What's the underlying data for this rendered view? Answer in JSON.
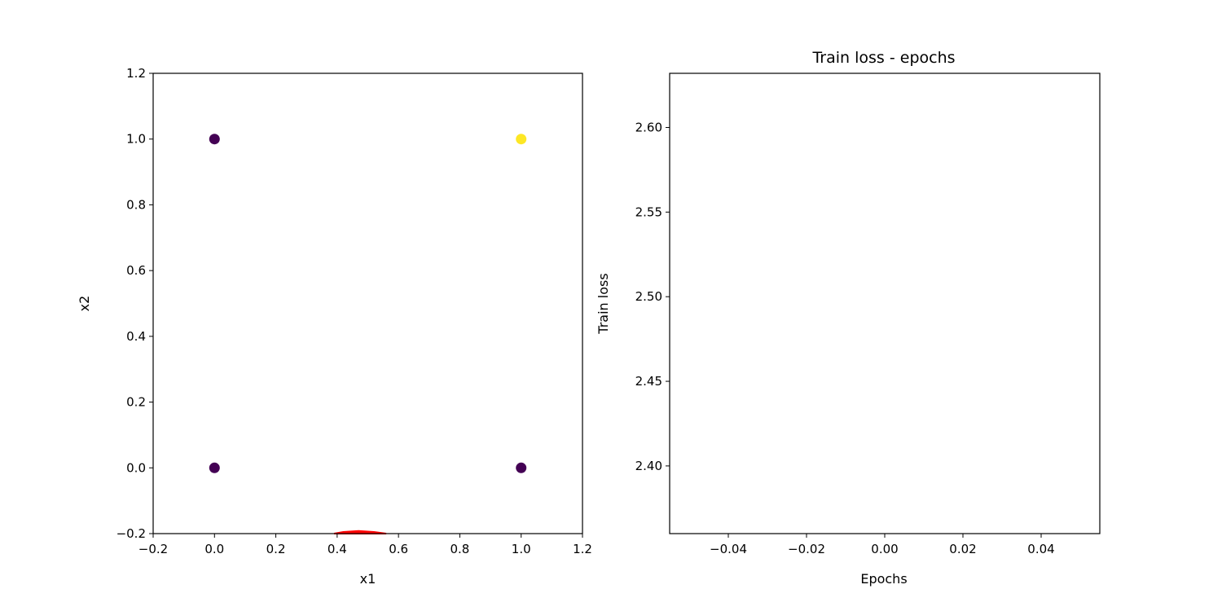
{
  "chart_data": [
    {
      "type": "scatter",
      "title": "",
      "xlabel": "x1",
      "ylabel": "x2",
      "xlim": [
        -0.2,
        1.2
      ],
      "ylim": [
        -0.2,
        1.2
      ],
      "xticks": [
        -0.2,
        0.0,
        0.2,
        0.4,
        0.6,
        0.8,
        1.0,
        1.2
      ],
      "yticks": [
        -0.2,
        0.0,
        0.2,
        0.4,
        0.6,
        0.8,
        1.0,
        1.2
      ],
      "xtick_labels": [
        "−0.2",
        "0.0",
        "0.2",
        "0.4",
        "0.6",
        "0.8",
        "1.0",
        "1.2"
      ],
      "ytick_labels": [
        "−0.2",
        "0.0",
        "0.2",
        "0.4",
        "0.6",
        "0.8",
        "1.0",
        "1.2"
      ],
      "points": [
        {
          "x": 0,
          "y": 0,
          "label": 0,
          "color": "#440154"
        },
        {
          "x": 0,
          "y": 1,
          "label": 0,
          "color": "#440154"
        },
        {
          "x": 1,
          "y": 0,
          "label": 0,
          "color": "#440154"
        },
        {
          "x": 1,
          "y": 1,
          "label": 1,
          "color": "#fde725"
        }
      ],
      "decision_boundary": {
        "color": "#ff0000",
        "points": [
          [
            0.39,
            -0.2
          ],
          [
            0.42,
            -0.195
          ],
          [
            0.47,
            -0.192
          ],
          [
            0.52,
            -0.195
          ],
          [
            0.56,
            -0.2
          ]
        ]
      },
      "grid": false
    },
    {
      "type": "line",
      "title": "Train loss - epochs",
      "xlabel": "Epochs",
      "ylabel": "Train loss",
      "xlim": [
        -0.055,
        0.055
      ],
      "ylim": [
        2.36,
        2.632
      ],
      "xticks": [
        -0.04,
        -0.02,
        0.0,
        0.02,
        0.04
      ],
      "yticks": [
        2.4,
        2.45,
        2.5,
        2.55,
        2.6
      ],
      "xtick_labels": [
        "−0.04",
        "−0.02",
        "0.00",
        "0.02",
        "0.04"
      ],
      "ytick_labels": [
        "2.40",
        "2.45",
        "2.50",
        "2.55",
        "2.60"
      ],
      "series": [],
      "grid": false
    }
  ]
}
